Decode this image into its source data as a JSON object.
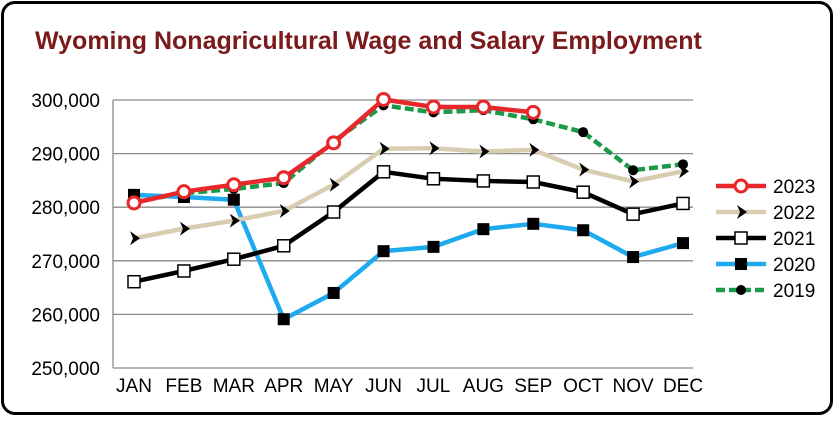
{
  "chart_data": {
    "type": "line",
    "title": "Wyoming Nonagricultural Wage and Salary Employment",
    "title_color": "#7a1a1a",
    "categories": [
      "JAN",
      "FEB",
      "MAR",
      "APR",
      "MAY",
      "JUN",
      "JUL",
      "AUG",
      "SEP",
      "OCT",
      "NOV",
      "DEC"
    ],
    "ylim": [
      250000,
      300000
    ],
    "yticks": [
      250000,
      260000,
      270000,
      280000,
      290000,
      300000
    ],
    "ytick_labels": [
      "250,000",
      "260,000",
      "270,000",
      "280,000",
      "290,000",
      "300,000"
    ],
    "grid": true,
    "legend_position": "right",
    "series": [
      {
        "name": "2023",
        "color": "#e8272a",
        "marker": "open-circle",
        "values": [
          280800,
          282900,
          284200,
          285500,
          292000,
          300100,
          298700,
          298700,
          297700,
          null,
          null,
          null
        ]
      },
      {
        "name": "2022",
        "color": "#d8cdb0",
        "marker": "chevron",
        "values": [
          274200,
          276000,
          277500,
          279300,
          284200,
          290900,
          291000,
          290400,
          290700,
          287000,
          284800,
          286700
        ]
      },
      {
        "name": "2021",
        "color": "#000000",
        "marker": "open-square",
        "values": [
          266100,
          268100,
          270300,
          272800,
          279100,
          286600,
          285300,
          284900,
          284700,
          282800,
          278700,
          280700
        ]
      },
      {
        "name": "2020",
        "color": "#1eaaee",
        "marker": "filled-square",
        "values": [
          282300,
          281900,
          281400,
          259100,
          264000,
          271800,
          272600,
          275900,
          276900,
          275700,
          270700,
          273300
        ]
      },
      {
        "name": "2019",
        "color": "#1a9a48",
        "marker": "filled-circle",
        "values": [
          281000,
          282600,
          283400,
          284500,
          292300,
          299000,
          297700,
          298100,
          296400,
          294000,
          286900,
          288000
        ]
      }
    ]
  }
}
